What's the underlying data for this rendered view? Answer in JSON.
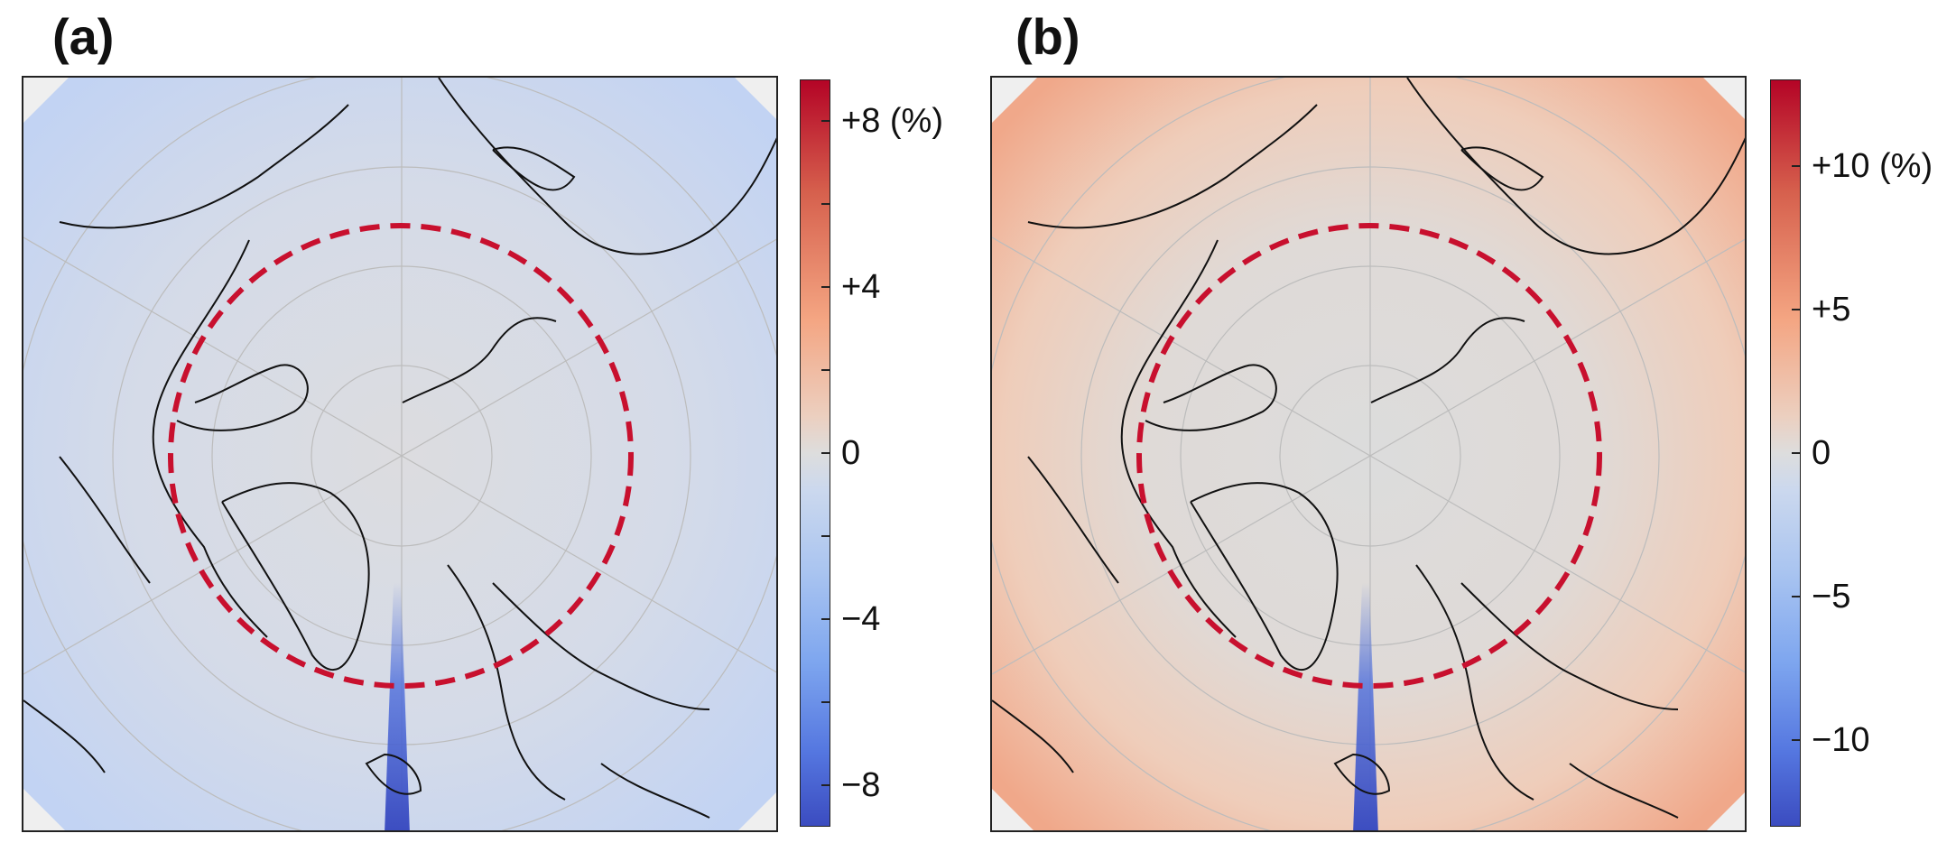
{
  "panels": [
    {
      "label": "(a)",
      "colorbar": {
        "min": -9,
        "max": 9,
        "ticks": [
          {
            "value": 8,
            "label": "+8 (%)"
          },
          {
            "value": 6,
            "label": ""
          },
          {
            "value": 4,
            "label": "+4"
          },
          {
            "value": 2,
            "label": ""
          },
          {
            "value": 0,
            "label": "0"
          },
          {
            "value": -2,
            "label": ""
          },
          {
            "value": -4,
            "label": "−4"
          },
          {
            "value": -6,
            "label": ""
          },
          {
            "value": -8,
            "label": "−8"
          }
        ]
      },
      "field_tint": "#c9d8f4"
    },
    {
      "label": "(b)",
      "colorbar": {
        "min": -13,
        "max": 13,
        "ticks": [
          {
            "value": 10,
            "label": "+10 (%)"
          },
          {
            "value": 5,
            "label": "+5"
          },
          {
            "value": 0,
            "label": "0"
          },
          {
            "value": -5,
            "label": "−5"
          },
          {
            "value": -10,
            "label": "−10"
          }
        ]
      },
      "field_tint": "#f3c3aa"
    }
  ],
  "chart_data": [
    {
      "type": "heatmap",
      "projection": "north-polar-stereographic",
      "title": "",
      "colorbar_label": "(%)",
      "colormap": "coolwarm",
      "value_range": [
        -9,
        9
      ],
      "overlay": "arctic-circle-dashed",
      "overlay_color": "#c8102e",
      "description_values": {
        "field": "mostly slightly negative",
        "meridian_streak": "strongly negative"
      }
    },
    {
      "type": "heatmap",
      "projection": "north-polar-stereographic",
      "title": "",
      "colorbar_label": "(%)",
      "colormap": "coolwarm",
      "value_range": [
        -13,
        13
      ],
      "overlay": "arctic-circle-dashed",
      "overlay_color": "#c8102e",
      "description_values": {
        "field": "positive at lower latitudes, near zero inside circle",
        "meridian_streak": "strongly negative"
      }
    }
  ],
  "colors": {
    "overlay": "#c8102e",
    "coast": "#111111",
    "grid": "#bcbcbc"
  }
}
